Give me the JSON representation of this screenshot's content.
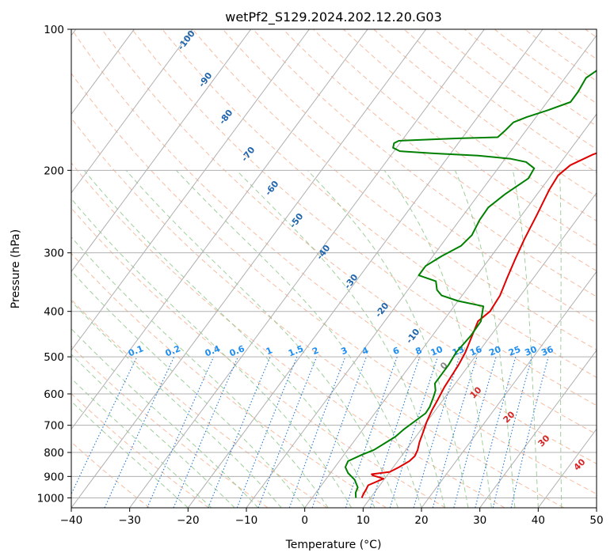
{
  "chart_data": {
    "type": "line",
    "title": "wetPf2_S129.2024.202.12.20.G03",
    "xlabel": "Temperature (°C)",
    "ylabel": "Pressure (hPa)",
    "xlim": [
      -40,
      50
    ],
    "ylim": [
      1050,
      100
    ],
    "y_scale": "log",
    "grid": true,
    "x_ticks": [
      -40,
      -30,
      -20,
      -10,
      0,
      10,
      20,
      30,
      40,
      50
    ],
    "x_tick_labels": [
      "−40",
      "−30",
      "−20",
      "−10",
      "0",
      "10",
      "20",
      "30",
      "40",
      "50"
    ],
    "y_ticks": [
      1000,
      900,
      800,
      700,
      600,
      500,
      400,
      300,
      200,
      100
    ],
    "y_tick_labels": [
      "1000",
      "900",
      "800",
      "700",
      "600",
      "500",
      "400",
      "300",
      "200",
      "100"
    ],
    "series": [
      {
        "color": "#e00000",
        "points": [
          [
            8.5,
            1000
          ],
          [
            8.3,
            980
          ],
          [
            8.2,
            960
          ],
          [
            8.0,
            940
          ],
          [
            9.8,
            910
          ],
          [
            7.5,
            895
          ],
          [
            7.2,
            890
          ],
          [
            10.0,
            880
          ],
          [
            11.0,
            860
          ],
          [
            12.0,
            835
          ],
          [
            12.3,
            815
          ],
          [
            12.0,
            790
          ],
          [
            11.3,
            760
          ],
          [
            10.7,
            725
          ],
          [
            10.0,
            690
          ],
          [
            9.4,
            650
          ],
          [
            9.1,
            620
          ],
          [
            8.6,
            580
          ],
          [
            8.4,
            550
          ],
          [
            8.2,
            520
          ],
          [
            7.8,
            490
          ],
          [
            6.8,
            450
          ],
          [
            6.0,
            420
          ],
          [
            6.8,
            400
          ],
          [
            6.5,
            370
          ],
          [
            5.5,
            340
          ],
          [
            4.5,
            310
          ],
          [
            3.5,
            280
          ],
          [
            2.6,
            250
          ],
          [
            1.5,
            220
          ],
          [
            1.2,
            205
          ],
          [
            2.0,
            195
          ],
          [
            4.5,
            185
          ],
          [
            10.0,
            172
          ],
          [
            13.5,
            163
          ],
          [
            16.0,
            150
          ],
          [
            18.0,
            138
          ],
          [
            20.0,
            125
          ],
          [
            22.0,
            115
          ],
          [
            25.0,
            107
          ],
          [
            28.5,
            100
          ]
        ]
      },
      {
        "color": "#008000",
        "points": [
          [
            7.5,
            1000
          ],
          [
            6.8,
            975
          ],
          [
            6.5,
            950
          ],
          [
            5.0,
            915
          ],
          [
            3.0,
            885
          ],
          [
            1.8,
            860
          ],
          [
            1.5,
            835
          ],
          [
            3.0,
            810
          ],
          [
            4.5,
            790
          ],
          [
            5.5,
            765
          ],
          [
            6.5,
            740
          ],
          [
            7.0,
            715
          ],
          [
            8.7,
            660
          ],
          [
            8.6,
            640
          ],
          [
            8.0,
            610
          ],
          [
            7.5,
            590
          ],
          [
            6.5,
            570
          ],
          [
            6.5,
            520
          ],
          [
            6.2,
            490
          ],
          [
            6.6,
            450
          ],
          [
            6.5,
            420
          ],
          [
            5.0,
            390
          ],
          [
            0.0,
            380
          ],
          [
            -3.5,
            370
          ],
          [
            -5.0,
            360
          ],
          [
            -6.3,
            345
          ],
          [
            -10.0,
            335
          ],
          [
            -10.0,
            320
          ],
          [
            -8.5,
            305
          ],
          [
            -6.5,
            290
          ],
          [
            -6.0,
            275
          ],
          [
            -6.6,
            255
          ],
          [
            -6.7,
            240
          ],
          [
            -5.5,
            225
          ],
          [
            -3.5,
            208
          ],
          [
            -3.8,
            198
          ],
          [
            -6.0,
            192
          ],
          [
            -9.0,
            189
          ],
          [
            -15.0,
            186
          ],
          [
            -23.0,
            184
          ],
          [
            -29.0,
            182
          ],
          [
            -30.6,
            179
          ],
          [
            -31.0,
            175
          ],
          [
            -30.5,
            173
          ],
          [
            -21.0,
            171
          ],
          [
            -14.0,
            170
          ],
          [
            -13.6,
            165
          ],
          [
            -13.2,
            158
          ],
          [
            -11.6,
            154
          ],
          [
            -8.9,
            149
          ],
          [
            -6.0,
            143
          ],
          [
            -6.0,
            136
          ],
          [
            -6.4,
            127
          ],
          [
            -5.0,
            120
          ],
          [
            -4.0,
            114
          ],
          [
            -2.0,
            106
          ],
          [
            -1.5,
            100
          ]
        ]
      }
    ],
    "dry_adiabat_labels": [
      "-100",
      "-90",
      "-80",
      "-70",
      "-60",
      "-50",
      "-40",
      "-30",
      "-20",
      "-10",
      "0",
      "10",
      "20",
      "30",
      "40"
    ],
    "mixing_ratio_labels": [
      "0.1",
      "0.2",
      "0.4",
      "0.6",
      "1",
      "1.5",
      "2",
      "3",
      "4",
      "6",
      "8",
      "10",
      "13",
      "16",
      "20",
      "25",
      "30",
      "36"
    ],
    "colors": {
      "isobar": "#b0b0b0",
      "isotherm": "#b0b0b0",
      "dry_adiabat": "#f4a582",
      "moist_adiabat": "#7fbf7b",
      "mixing_ratio": "#1f78d1",
      "dry_label": "#2166ac",
      "moist_label_warm": "#d62728",
      "moist_label_zero": "#888888",
      "mixing_label": "#1f8ef1"
    }
  }
}
